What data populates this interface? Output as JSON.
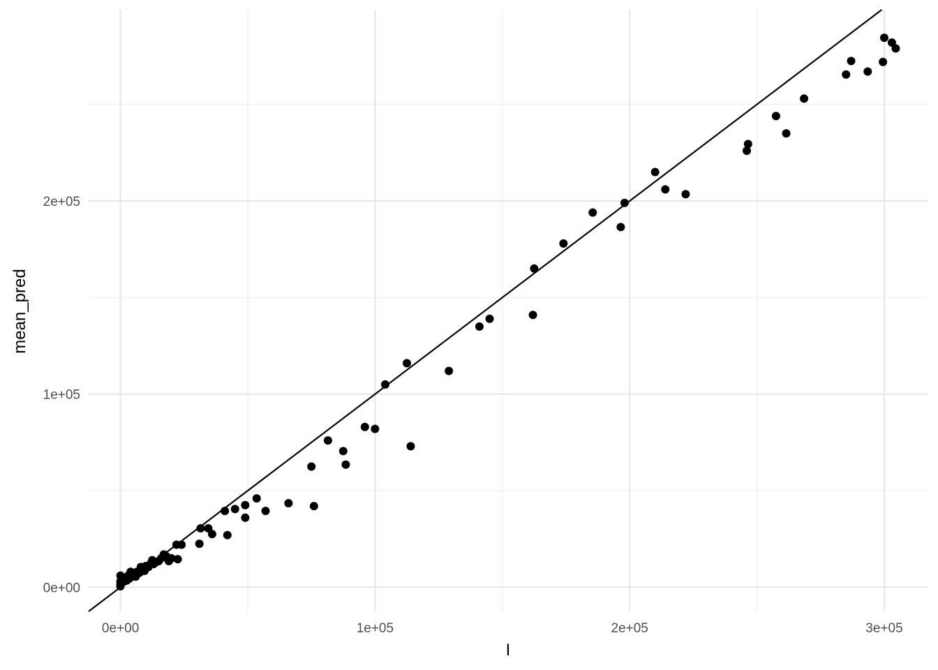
{
  "chart_data": {
    "type": "scatter",
    "title": "",
    "xlabel": "I",
    "ylabel": "mean_pred",
    "xlim": [
      -12500,
      317000
    ],
    "ylim": [
      -12500,
      299000
    ],
    "x_major_ticks": [
      0,
      100000,
      200000,
      300000
    ],
    "x_tick_labels": [
      "0e+00",
      "1e+05",
      "2e+05",
      "3e+05"
    ],
    "x_minor_ticks": [
      50000,
      150000,
      250000
    ],
    "y_major_ticks": [
      0,
      100000,
      200000
    ],
    "y_tick_labels": [
      "0e+00",
      "1e+05",
      "2e+05"
    ],
    "y_minor_ticks": [
      50000,
      150000,
      250000
    ],
    "grid": true,
    "reference_line": {
      "type": "identity",
      "slope": 1,
      "intercept": 0
    },
    "point_color": "#000000",
    "points": [
      [
        0,
        500
      ],
      [
        0,
        1500
      ],
      [
        0,
        3000
      ],
      [
        0,
        6000
      ],
      [
        0,
        1000
      ],
      [
        500,
        2500
      ],
      [
        1000,
        4000
      ],
      [
        1500,
        3000
      ],
      [
        2000,
        5000
      ],
      [
        2500,
        3500
      ],
      [
        3000,
        6000
      ],
      [
        3500,
        4500
      ],
      [
        4000,
        8000
      ],
      [
        4500,
        5500
      ],
      [
        5000,
        6500
      ],
      [
        5500,
        7000
      ],
      [
        6000,
        5500
      ],
      [
        6500,
        8000
      ],
      [
        7500,
        7500
      ],
      [
        8000,
        10500
      ],
      [
        9000,
        9000
      ],
      [
        9500,
        8500
      ],
      [
        10000,
        11000
      ],
      [
        11000,
        10500
      ],
      [
        12000,
        12500
      ],
      [
        12500,
        14000
      ],
      [
        13000,
        12000
      ],
      [
        14000,
        13000
      ],
      [
        15000,
        13500
      ],
      [
        16000,
        15000
      ],
      [
        17000,
        17000
      ],
      [
        18000,
        16000
      ],
      [
        19000,
        13500
      ],
      [
        20000,
        15000
      ],
      [
        22000,
        22000
      ],
      [
        22500,
        14500
      ],
      [
        24000,
        22000
      ],
      [
        31000,
        22500
      ],
      [
        31500,
        30500
      ],
      [
        34500,
        30500
      ],
      [
        36000,
        27500
      ],
      [
        41000,
        39500
      ],
      [
        42000,
        27000
      ],
      [
        45000,
        40500
      ],
      [
        49000,
        42500
      ],
      [
        49000,
        36000
      ],
      [
        53500,
        46000
      ],
      [
        57000,
        39500
      ],
      [
        66000,
        43500
      ],
      [
        75000,
        62500
      ],
      [
        76000,
        42000
      ],
      [
        81500,
        76000
      ],
      [
        87500,
        70500
      ],
      [
        88500,
        63500
      ],
      [
        96000,
        83000
      ],
      [
        100000,
        82000
      ],
      [
        104000,
        105000
      ],
      [
        112500,
        116000
      ],
      [
        114000,
        73000
      ],
      [
        129000,
        112000
      ],
      [
        141000,
        135000
      ],
      [
        145000,
        139000
      ],
      [
        162000,
        141000
      ],
      [
        162500,
        165000
      ],
      [
        174000,
        178000
      ],
      [
        185500,
        194000
      ],
      [
        196500,
        186500
      ],
      [
        198000,
        199000
      ],
      [
        210000,
        215000
      ],
      [
        214000,
        206000
      ],
      [
        222000,
        203500
      ],
      [
        246000,
        226000
      ],
      [
        246500,
        229500
      ],
      [
        257500,
        244000
      ],
      [
        261500,
        235000
      ],
      [
        268500,
        253000
      ],
      [
        285000,
        265500
      ],
      [
        287000,
        272500
      ],
      [
        293500,
        267000
      ],
      [
        299500,
        272000
      ],
      [
        300000,
        284500
      ],
      [
        303000,
        282000
      ],
      [
        304500,
        279000
      ]
    ]
  }
}
